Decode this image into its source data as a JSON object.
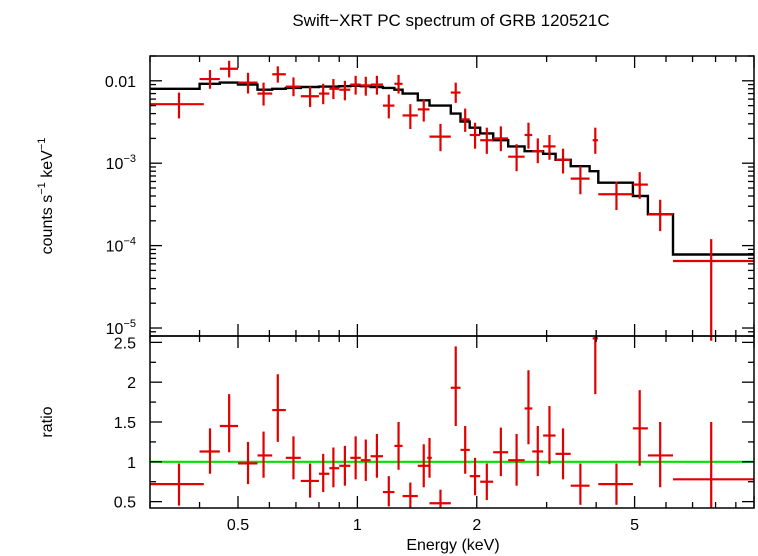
{
  "chart_data": [
    {
      "type": "scatter",
      "panel": "spectrum",
      "title": "Swift−XRT PC spectrum of GRB 120521C",
      "ylabel_main": "counts s",
      "ylabel_sup1": "−1",
      "ylabel_mid": " keV",
      "ylabel_sup2": "−1",
      "y_scale": "log",
      "ylim": [
        8e-06,
        0.02
      ],
      "xlim": [
        0.3,
        10
      ],
      "x_scale": "log",
      "y_ticks": [
        {
          "value": 0.01,
          "base": "0.01",
          "exp": ""
        },
        {
          "value": 0.001,
          "base": "10",
          "exp": "−3"
        },
        {
          "value": 0.0001,
          "base": "10",
          "exp": "−4"
        },
        {
          "value": 1e-05,
          "base": "10",
          "exp": "−5"
        }
      ],
      "data_color": "#e00000",
      "model_color": "#000000",
      "data": [
        {
          "x": 0.355,
          "xlo": 0.3,
          "xhi": 0.41,
          "y": 0.0052,
          "ylo": 0.0035,
          "yhi": 0.0072
        },
        {
          "x": 0.425,
          "xlo": 0.4,
          "xhi": 0.45,
          "y": 0.0105,
          "ylo": 0.008,
          "yhi": 0.0135
        },
        {
          "x": 0.475,
          "xlo": 0.45,
          "xhi": 0.5,
          "y": 0.014,
          "ylo": 0.011,
          "yhi": 0.0175
        },
        {
          "x": 0.53,
          "xlo": 0.5,
          "xhi": 0.56,
          "y": 0.0095,
          "ylo": 0.007,
          "yhi": 0.0125
        },
        {
          "x": 0.58,
          "xlo": 0.56,
          "xhi": 0.61,
          "y": 0.007,
          "ylo": 0.005,
          "yhi": 0.0095
        },
        {
          "x": 0.63,
          "xlo": 0.61,
          "xhi": 0.66,
          "y": 0.012,
          "ylo": 0.0095,
          "yhi": 0.015
        },
        {
          "x": 0.69,
          "xlo": 0.66,
          "xhi": 0.72,
          "y": 0.0085,
          "ylo": 0.0065,
          "yhi": 0.011
        },
        {
          "x": 0.76,
          "xlo": 0.72,
          "xhi": 0.8,
          "y": 0.0065,
          "ylo": 0.0048,
          "yhi": 0.0085
        },
        {
          "x": 0.82,
          "xlo": 0.8,
          "xhi": 0.85,
          "y": 0.007,
          "ylo": 0.0052,
          "yhi": 0.0092
        },
        {
          "x": 0.87,
          "xlo": 0.85,
          "xhi": 0.9,
          "y": 0.008,
          "ylo": 0.006,
          "yhi": 0.0105
        },
        {
          "x": 0.93,
          "xlo": 0.9,
          "xhi": 0.96,
          "y": 0.0078,
          "ylo": 0.0058,
          "yhi": 0.01
        },
        {
          "x": 0.99,
          "xlo": 0.96,
          "xhi": 1.02,
          "y": 0.009,
          "ylo": 0.0068,
          "yhi": 0.0115
        },
        {
          "x": 1.05,
          "xlo": 1.02,
          "xhi": 1.08,
          "y": 0.0088,
          "ylo": 0.0066,
          "yhi": 0.0112
        },
        {
          "x": 1.12,
          "xlo": 1.08,
          "xhi": 1.16,
          "y": 0.009,
          "ylo": 0.0068,
          "yhi": 0.0115
        },
        {
          "x": 1.2,
          "xlo": 1.16,
          "xhi": 1.24,
          "y": 0.005,
          "ylo": 0.0035,
          "yhi": 0.0068
        },
        {
          "x": 1.27,
          "xlo": 1.24,
          "xhi": 1.3,
          "y": 0.0092,
          "ylo": 0.007,
          "yhi": 0.0118
        },
        {
          "x": 1.36,
          "xlo": 1.3,
          "xhi": 1.42,
          "y": 0.0038,
          "ylo": 0.0026,
          "yhi": 0.0052
        },
        {
          "x": 1.47,
          "xlo": 1.42,
          "xhi": 1.52,
          "y": 0.0045,
          "ylo": 0.0032,
          "yhi": 0.006
        },
        {
          "x": 1.62,
          "xlo": 1.52,
          "xhi": 1.72,
          "y": 0.0021,
          "ylo": 0.0014,
          "yhi": 0.003
        },
        {
          "x": 1.77,
          "xlo": 1.72,
          "xhi": 1.82,
          "y": 0.0072,
          "ylo": 0.0054,
          "yhi": 0.0095
        },
        {
          "x": 1.87,
          "xlo": 1.82,
          "xhi": 1.92,
          "y": 0.0034,
          "ylo": 0.0024,
          "yhi": 0.0046
        },
        {
          "x": 1.98,
          "xlo": 1.92,
          "xhi": 2.04,
          "y": 0.0022,
          "ylo": 0.0015,
          "yhi": 0.0031
        },
        {
          "x": 2.12,
          "xlo": 2.04,
          "xhi": 2.2,
          "y": 0.0019,
          "ylo": 0.0013,
          "yhi": 0.0027
        },
        {
          "x": 2.3,
          "xlo": 2.2,
          "xhi": 2.4,
          "y": 0.002,
          "ylo": 0.0014,
          "yhi": 0.0028
        },
        {
          "x": 2.52,
          "xlo": 2.4,
          "xhi": 2.64,
          "y": 0.0012,
          "ylo": 0.0008,
          "yhi": 0.0017
        },
        {
          "x": 2.7,
          "xlo": 2.64,
          "xhi": 2.76,
          "y": 0.0022,
          "ylo": 0.0015,
          "yhi": 0.0031
        },
        {
          "x": 2.85,
          "xlo": 2.76,
          "xhi": 2.94,
          "y": 0.0014,
          "ylo": 0.001,
          "yhi": 0.002
        },
        {
          "x": 3.05,
          "xlo": 2.94,
          "xhi": 3.16,
          "y": 0.0016,
          "ylo": 0.0011,
          "yhi": 0.0022
        },
        {
          "x": 3.3,
          "xlo": 3.16,
          "xhi": 3.45,
          "y": 0.0011,
          "ylo": 0.00075,
          "yhi": 0.0015
        },
        {
          "x": 3.65,
          "xlo": 3.45,
          "xhi": 3.85,
          "y": 0.00065,
          "ylo": 0.00042,
          "yhi": 0.00092
        },
        {
          "x": 3.98,
          "xlo": 3.92,
          "xhi": 4.04,
          "y": 0.0019,
          "ylo": 0.0013,
          "yhi": 0.0027
        },
        {
          "x": 4.5,
          "xlo": 4.05,
          "xhi": 4.95,
          "y": 0.00042,
          "ylo": 0.00027,
          "yhi": 0.0006
        },
        {
          "x": 5.15,
          "xlo": 4.95,
          "xhi": 5.4,
          "y": 0.00055,
          "ylo": 0.00037,
          "yhi": 0.00078
        },
        {
          "x": 5.8,
          "xlo": 5.4,
          "xhi": 6.25,
          "y": 0.00024,
          "ylo": 0.00015,
          "yhi": 0.00036
        },
        {
          "x": 7.8,
          "xlo": 6.25,
          "xhi": 10.0,
          "y": 6.5e-05,
          "ylo": 7e-06,
          "yhi": 0.00012
        }
      ],
      "model": [
        {
          "x0": 0.3,
          "x1": 0.4,
          "y": 0.008
        },
        {
          "x0": 0.4,
          "x1": 0.45,
          "y": 0.0092
        },
        {
          "x0": 0.45,
          "x1": 0.5,
          "y": 0.0095
        },
        {
          "x0": 0.5,
          "x1": 0.56,
          "y": 0.009
        },
        {
          "x0": 0.56,
          "x1": 0.61,
          "y": 0.0078
        },
        {
          "x0": 0.61,
          "x1": 0.66,
          "y": 0.008
        },
        {
          "x0": 0.66,
          "x1": 0.72,
          "y": 0.0082
        },
        {
          "x0": 0.72,
          "x1": 0.8,
          "y": 0.0084
        },
        {
          "x0": 0.8,
          "x1": 0.9,
          "y": 0.0085
        },
        {
          "x0": 0.9,
          "x1": 0.96,
          "y": 0.0086
        },
        {
          "x0": 0.96,
          "x1": 1.02,
          "y": 0.0087
        },
        {
          "x0": 1.02,
          "x1": 1.08,
          "y": 0.0086
        },
        {
          "x0": 1.08,
          "x1": 1.16,
          "y": 0.0084
        },
        {
          "x0": 1.16,
          "x1": 1.24,
          "y": 0.0082
        },
        {
          "x0": 1.24,
          "x1": 1.3,
          "y": 0.0078
        },
        {
          "x0": 1.3,
          "x1": 1.42,
          "y": 0.007
        },
        {
          "x0": 1.42,
          "x1": 1.52,
          "y": 0.0058
        },
        {
          "x0": 1.52,
          "x1": 1.72,
          "y": 0.005
        },
        {
          "x0": 1.72,
          "x1": 1.82,
          "y": 0.004
        },
        {
          "x0": 1.82,
          "x1": 1.92,
          "y": 0.0032
        },
        {
          "x0": 1.92,
          "x1": 2.04,
          "y": 0.0027
        },
        {
          "x0": 2.04,
          "x1": 2.2,
          "y": 0.0023
        },
        {
          "x0": 2.2,
          "x1": 2.4,
          "y": 0.0019
        },
        {
          "x0": 2.4,
          "x1": 2.64,
          "y": 0.0016
        },
        {
          "x0": 2.64,
          "x1": 2.94,
          "y": 0.0014
        },
        {
          "x0": 2.94,
          "x1": 3.16,
          "y": 0.0013
        },
        {
          "x0": 3.16,
          "x1": 3.45,
          "y": 0.0011
        },
        {
          "x0": 3.45,
          "x1": 3.85,
          "y": 0.00092
        },
        {
          "x0": 3.85,
          "x1": 4.05,
          "y": 0.0008
        },
        {
          "x0": 4.05,
          "x1": 4.95,
          "y": 0.00058
        },
        {
          "x0": 4.95,
          "x1": 5.4,
          "y": 0.0004
        },
        {
          "x0": 5.4,
          "x1": 6.25,
          "y": 0.00024
        },
        {
          "x0": 6.25,
          "x1": 10.0,
          "y": 7.8e-05
        }
      ]
    },
    {
      "type": "scatter",
      "panel": "ratio",
      "ylabel": "ratio",
      "xlabel": "Energy (keV)",
      "xlim": [
        0.3,
        10
      ],
      "x_scale": "log",
      "ylim": [
        0.42,
        2.58
      ],
      "y_ticks": [
        0.5,
        1,
        1.5,
        2,
        2.5
      ],
      "y_tick_labels": [
        "0.5",
        "1",
        "1.5",
        "2",
        "2.5"
      ],
      "x_ticks": [
        0.5,
        1,
        2,
        5
      ],
      "x_tick_labels": [
        "0.5",
        "1",
        "2",
        "5"
      ],
      "reference_line": 1,
      "reference_color": "#00e000",
      "data": [
        {
          "x": 0.355,
          "xlo": 0.3,
          "xhi": 0.41,
          "y": 0.72,
          "ylo": 0.45,
          "yhi": 0.98
        },
        {
          "x": 0.425,
          "xlo": 0.4,
          "xhi": 0.45,
          "y": 1.13,
          "ylo": 0.85,
          "yhi": 1.42
        },
        {
          "x": 0.475,
          "xlo": 0.45,
          "xhi": 0.5,
          "y": 1.45,
          "ylo": 1.12,
          "yhi": 1.85
        },
        {
          "x": 0.53,
          "xlo": 0.5,
          "xhi": 0.56,
          "y": 0.98,
          "ylo": 0.72,
          "yhi": 1.25
        },
        {
          "x": 0.58,
          "xlo": 0.56,
          "xhi": 0.61,
          "y": 1.08,
          "ylo": 0.8,
          "yhi": 1.38
        },
        {
          "x": 0.63,
          "xlo": 0.61,
          "xhi": 0.66,
          "y": 1.65,
          "ylo": 1.25,
          "yhi": 2.1
        },
        {
          "x": 0.69,
          "xlo": 0.66,
          "xhi": 0.72,
          "y": 1.05,
          "ylo": 0.78,
          "yhi": 1.32
        },
        {
          "x": 0.76,
          "xlo": 0.72,
          "xhi": 0.8,
          "y": 0.76,
          "ylo": 0.55,
          "yhi": 0.98
        },
        {
          "x": 0.82,
          "xlo": 0.8,
          "xhi": 0.85,
          "y": 0.85,
          "ylo": 0.62,
          "yhi": 1.1
        },
        {
          "x": 0.87,
          "xlo": 0.85,
          "xhi": 0.9,
          "y": 0.92,
          "ylo": 0.68,
          "yhi": 1.18
        },
        {
          "x": 0.93,
          "xlo": 0.9,
          "xhi": 0.96,
          "y": 0.95,
          "ylo": 0.7,
          "yhi": 1.2
        },
        {
          "x": 0.99,
          "xlo": 0.96,
          "xhi": 1.02,
          "y": 1.05,
          "ylo": 0.78,
          "yhi": 1.32
        },
        {
          "x": 1.05,
          "xlo": 1.02,
          "xhi": 1.08,
          "y": 1.02,
          "ylo": 0.76,
          "yhi": 1.28
        },
        {
          "x": 1.12,
          "xlo": 1.08,
          "xhi": 1.16,
          "y": 1.07,
          "ylo": 0.8,
          "yhi": 1.35
        },
        {
          "x": 1.2,
          "xlo": 1.16,
          "xhi": 1.24,
          "y": 0.62,
          "ylo": 0.44,
          "yhi": 0.82
        },
        {
          "x": 1.27,
          "xlo": 1.24,
          "xhi": 1.3,
          "y": 1.2,
          "ylo": 0.9,
          "yhi": 1.5
        },
        {
          "x": 1.36,
          "xlo": 1.3,
          "xhi": 1.42,
          "y": 0.57,
          "ylo": 0.42,
          "yhi": 0.74
        },
        {
          "x": 1.47,
          "xlo": 1.42,
          "xhi": 1.52,
          "y": 0.95,
          "ylo": 0.68,
          "yhi": 1.22
        },
        {
          "x": 1.52,
          "xlo": 1.5,
          "xhi": 1.54,
          "y": 1.05,
          "ylo": 0.8,
          "yhi": 1.3
        },
        {
          "x": 1.62,
          "xlo": 1.52,
          "xhi": 1.72,
          "y": 0.48,
          "ylo": 0.42,
          "yhi": 0.65
        },
        {
          "x": 1.77,
          "xlo": 1.72,
          "xhi": 1.82,
          "y": 1.93,
          "ylo": 1.45,
          "yhi": 2.45
        },
        {
          "x": 1.87,
          "xlo": 1.82,
          "xhi": 1.92,
          "y": 1.15,
          "ylo": 0.85,
          "yhi": 1.45
        },
        {
          "x": 1.98,
          "xlo": 1.92,
          "xhi": 2.04,
          "y": 0.82,
          "ylo": 0.58,
          "yhi": 1.05
        },
        {
          "x": 2.12,
          "xlo": 2.04,
          "xhi": 2.2,
          "y": 0.75,
          "ylo": 0.52,
          "yhi": 0.98
        },
        {
          "x": 2.3,
          "xlo": 2.2,
          "xhi": 2.4,
          "y": 1.12,
          "ylo": 0.82,
          "yhi": 1.43
        },
        {
          "x": 2.52,
          "xlo": 2.4,
          "xhi": 2.64,
          "y": 1.02,
          "ylo": 0.7,
          "yhi": 1.35
        },
        {
          "x": 2.7,
          "xlo": 2.64,
          "xhi": 2.76,
          "y": 1.67,
          "ylo": 1.22,
          "yhi": 2.15
        },
        {
          "x": 2.85,
          "xlo": 2.76,
          "xhi": 2.94,
          "y": 1.13,
          "ylo": 0.82,
          "yhi": 1.45
        },
        {
          "x": 3.05,
          "xlo": 2.94,
          "xhi": 3.16,
          "y": 1.33,
          "ylo": 0.97,
          "yhi": 1.7
        },
        {
          "x": 3.3,
          "xlo": 3.16,
          "xhi": 3.45,
          "y": 1.1,
          "ylo": 0.78,
          "yhi": 1.42
        },
        {
          "x": 3.65,
          "xlo": 3.45,
          "xhi": 3.85,
          "y": 0.7,
          "ylo": 0.46,
          "yhi": 0.98
        },
        {
          "x": 3.98,
          "xlo": 3.92,
          "xhi": 4.04,
          "y": 2.55,
          "ylo": 1.85,
          "yhi": 2.58
        },
        {
          "x": 4.5,
          "xlo": 4.05,
          "xhi": 4.95,
          "y": 0.72,
          "ylo": 0.46,
          "yhi": 0.98
        },
        {
          "x": 5.15,
          "xlo": 4.95,
          "xhi": 5.4,
          "y": 1.42,
          "ylo": 0.95,
          "yhi": 1.9
        },
        {
          "x": 5.8,
          "xlo": 5.4,
          "xhi": 6.25,
          "y": 1.08,
          "ylo": 0.68,
          "yhi": 1.5
        },
        {
          "x": 7.8,
          "xlo": 6.25,
          "xhi": 10.0,
          "y": 0.78,
          "ylo": 0.42,
          "yhi": 1.5
        }
      ]
    }
  ]
}
